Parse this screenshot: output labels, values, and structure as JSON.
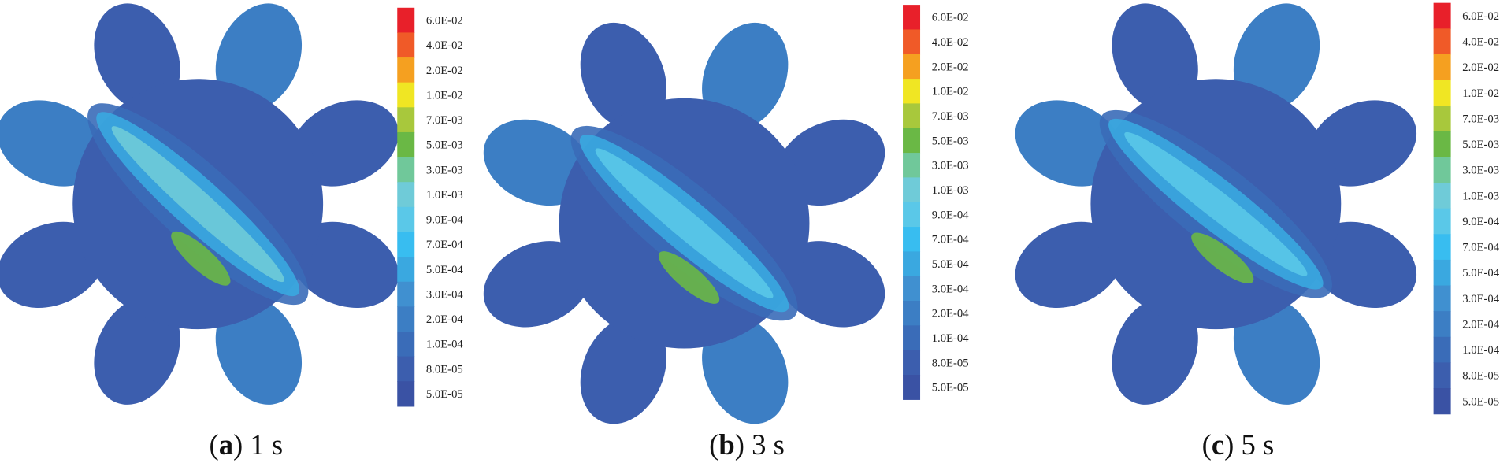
{
  "panels": [
    {
      "caption": {
        "prefix": "(",
        "letter": "a",
        "suffix": ") 1 s"
      },
      "legend": {
        "labels": [
          "6.0E-02",
          "4.0E-02",
          "2.0E-02",
          "1.0E-02",
          "7.0E-03",
          "5.0E-03",
          "3.0E-03",
          "1.0E-03",
          "9.0E-04",
          "7.0E-04",
          "5.0E-04",
          "3.0E-04",
          "2.0E-04",
          "1.0E-04",
          "8.0E-05",
          "5.0E-05"
        ]
      }
    },
    {
      "caption": {
        "prefix": "(",
        "letter": "b",
        "suffix": ") 3 s"
      },
      "legend": {
        "labels": [
          "6.0E-02",
          "4.0E-02",
          "2.0E-02",
          "1.0E-02",
          "7.0E-03",
          "5.0E-03",
          "3.0E-03",
          "1.0E-03",
          "9.0E-04",
          "7.0E-04",
          "5.0E-04",
          "3.0E-04",
          "2.0E-04",
          "1.0E-04",
          "8.0E-05",
          "5.0E-05"
        ]
      }
    },
    {
      "caption": {
        "prefix": "(",
        "letter": "c",
        "suffix": ") 5 s"
      },
      "legend": {
        "labels": [
          "6.0E-02",
          "4.0E-02",
          "2.0E-02",
          "1.0E-02",
          "7.0E-03",
          "5.0E-03",
          "3.0E-03",
          "1.0E-03",
          "9.0E-04",
          "7.0E-04",
          "5.0E-04",
          "3.0E-04",
          "2.0E-04",
          "1.0E-04",
          "8.0E-05",
          "5.0E-05"
        ]
      }
    }
  ],
  "colors": [
    "#e8202a",
    "#f05a28",
    "#f5a020",
    "#f0e623",
    "#a8c83c",
    "#6ab845",
    "#70c89a",
    "#6fcbd8",
    "#5ac8e8",
    "#38bdf0",
    "#3aa8e0",
    "#4090d0",
    "#3c7ec4",
    "#3a6cb8",
    "#3c5eae",
    "#3a52a4"
  ]
}
